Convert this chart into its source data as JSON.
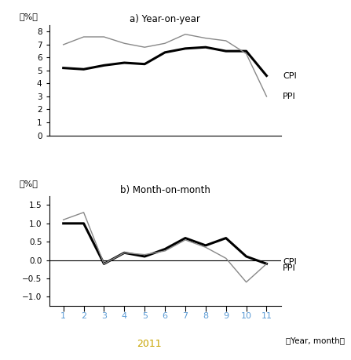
{
  "title_a": "a) Year-on-year",
  "title_b": "b) Month-on-month",
  "months": [
    1,
    2,
    3,
    4,
    5,
    6,
    7,
    8,
    9,
    10,
    11
  ],
  "yoy_cpi": [
    5.2,
    5.1,
    5.4,
    5.6,
    5.5,
    6.4,
    6.7,
    6.8,
    6.5,
    6.5,
    4.6
  ],
  "yoy_ppi": [
    7.0,
    7.6,
    7.6,
    7.1,
    6.8,
    7.1,
    7.8,
    7.5,
    7.3,
    6.3,
    3.0
  ],
  "mom_cpi": [
    1.0,
    1.0,
    -0.1,
    0.2,
    0.1,
    0.3,
    0.6,
    0.4,
    0.6,
    0.1,
    -0.1
  ],
  "mom_ppi": [
    1.1,
    1.3,
    -0.1,
    0.2,
    0.15,
    0.25,
    0.55,
    0.35,
    0.05,
    -0.6,
    -0.1
  ],
  "yoy_ylim": [
    0,
    8.5
  ],
  "yoy_yticks": [
    0,
    1,
    2,
    3,
    4,
    5,
    6,
    7,
    8
  ],
  "mom_ylim": [
    -1.25,
    1.75
  ],
  "mom_yticks": [
    -1.0,
    -0.5,
    0.0,
    0.5,
    1.0,
    1.5
  ],
  "color_cpi": "#000000",
  "color_ppi": "#888888",
  "color_blue_label": "#5B9BD5",
  "color_orange": "#E36C09",
  "year_label": "2011",
  "year_label_color": "#C8A400",
  "xlabel": "（Year, month）",
  "ylabel": "（%）"
}
